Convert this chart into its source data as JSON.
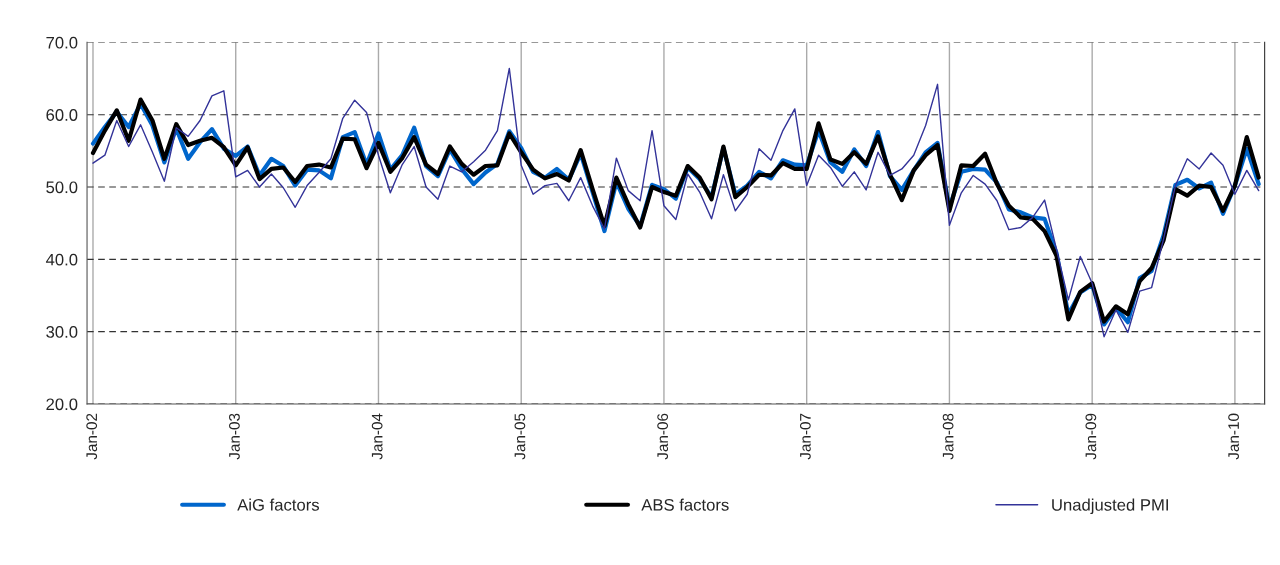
{
  "chart_data": {
    "type": "line",
    "categories": [
      "Jan-02",
      null,
      null,
      null,
      null,
      null,
      null,
      null,
      null,
      null,
      null,
      null,
      "Jan-03",
      null,
      null,
      null,
      null,
      null,
      null,
      null,
      null,
      null,
      null,
      null,
      "Jan-04",
      null,
      null,
      null,
      null,
      null,
      null,
      null,
      null,
      null,
      null,
      null,
      "Jan-05",
      null,
      null,
      null,
      null,
      null,
      null,
      null,
      null,
      null,
      null,
      null,
      "Jan-06",
      null,
      null,
      null,
      null,
      null,
      null,
      null,
      null,
      null,
      null,
      null,
      "Jan-07",
      null,
      null,
      null,
      null,
      null,
      null,
      null,
      null,
      null,
      null,
      null,
      "Jan-08",
      null,
      null,
      null,
      null,
      null,
      null,
      null,
      null,
      null,
      null,
      null,
      "Jan-09",
      null,
      null,
      null,
      null,
      null,
      null,
      null,
      null,
      null,
      null,
      null,
      "Jan-10",
      null,
      null
    ],
    "series": [
      {
        "name": "AiG factors",
        "color": "#0066cc",
        "values": [
          56.0,
          58.3,
          60.4,
          58.3,
          61.5,
          58.5,
          53.4,
          58.1,
          53.9,
          56.2,
          58.0,
          55.3,
          54.3,
          55.6,
          51.6,
          53.9,
          52.9,
          50.2,
          52.4,
          52.3,
          51.2,
          56.9,
          57.6,
          53.1,
          57.4,
          52.4,
          54.4,
          58.2,
          52.9,
          51.5,
          55.2,
          52.5,
          50.4,
          52.0,
          53.2,
          57.7,
          55.4,
          52.1,
          51.3,
          52.5,
          51.0,
          54.6,
          49.3,
          43.9,
          50.7,
          47.0,
          44.6,
          50.3,
          49.7,
          48.4,
          52.7,
          51.1,
          48.6,
          55.4,
          49.0,
          50.2,
          52.1,
          51.2,
          53.7,
          53.1,
          53.0,
          57.8,
          53.4,
          52.1,
          55.2,
          52.9,
          57.6,
          51.5,
          49.6,
          52.3,
          54.8,
          56.1,
          47.2,
          52.1,
          52.5,
          52.4,
          50.6,
          46.9,
          46.5,
          45.8,
          45.6,
          40.9,
          32.4,
          35.4,
          36.5,
          31.0,
          33.3,
          31.3,
          37.4,
          38.4,
          43.3,
          50.3,
          51.0,
          49.8,
          50.6,
          46.3,
          50.2,
          55.3,
          50.4
        ]
      },
      {
        "name": "ABS factors",
        "color": "#000000",
        "values": [
          54.7,
          57.8,
          60.6,
          56.4,
          62.1,
          59.2,
          53.9,
          58.7,
          55.8,
          56.4,
          56.8,
          55.5,
          53.0,
          55.5,
          51.1,
          52.5,
          52.7,
          50.7,
          52.9,
          53.1,
          52.7,
          56.7,
          56.6,
          52.6,
          56.1,
          52.1,
          54.0,
          56.9,
          53.1,
          51.8,
          55.6,
          53.2,
          51.7,
          52.9,
          53.0,
          57.4,
          54.8,
          52.4,
          51.2,
          51.8,
          50.9,
          55.1,
          49.7,
          44.6,
          51.3,
          47.6,
          44.4,
          50.0,
          49.3,
          48.8,
          52.9,
          51.3,
          48.3,
          55.6,
          48.6,
          50.0,
          51.7,
          51.6,
          53.3,
          52.5,
          52.5,
          58.8,
          53.8,
          53.2,
          54.8,
          53.2,
          57.0,
          51.7,
          48.2,
          52.3,
          54.4,
          55.8,
          46.7,
          53.0,
          52.9,
          54.6,
          50.4,
          47.4,
          45.8,
          45.6,
          43.9,
          40.5,
          31.7,
          35.5,
          36.7,
          31.4,
          33.5,
          32.4,
          37.0,
          38.8,
          42.6,
          49.7,
          48.8,
          50.2,
          50.0,
          46.7,
          50.2,
          56.9,
          51.3
        ]
      },
      {
        "name": "Unadjusted PMI",
        "color": "#333399",
        "values": [
          53.3,
          54.4,
          59.2,
          55.6,
          58.6,
          54.8,
          50.8,
          58.2,
          57.0,
          59.2,
          62.6,
          63.3,
          51.4,
          52.3,
          50.0,
          51.8,
          49.9,
          47.2,
          50.2,
          52.0,
          53.9,
          59.5,
          62.0,
          60.3,
          54.4,
          49.2,
          53.1,
          55.6,
          50.0,
          48.3,
          52.9,
          52.1,
          53.5,
          55.1,
          57.8,
          66.4,
          53.0,
          49.0,
          50.2,
          50.5,
          48.1,
          51.3,
          47.4,
          44.2,
          54.0,
          49.5,
          48.1,
          57.8,
          47.4,
          45.5,
          51.8,
          49.3,
          45.6,
          51.7,
          46.7,
          49.0,
          55.3,
          53.7,
          57.8,
          60.8,
          50.2,
          54.4,
          52.7,
          50.1,
          52.1,
          49.6,
          54.8,
          51.6,
          52.5,
          54.4,
          58.5,
          64.2,
          44.7,
          49.2,
          51.6,
          50.4,
          48.1,
          44.1,
          44.4,
          45.8,
          48.2,
          41.4,
          34.4,
          40.4,
          36.7,
          29.3,
          33.0,
          29.9,
          35.6,
          36.1,
          42.8,
          50.2,
          53.9,
          52.5,
          54.7,
          53.0,
          49.0,
          52.3,
          49.5
        ]
      }
    ],
    "ylim": [
      20,
      70
    ],
    "yticks": [
      {
        "value": 20,
        "label": "20.0"
      },
      {
        "value": 30,
        "label": "30.0"
      },
      {
        "value": 40,
        "label": "40.0"
      },
      {
        "value": 50,
        "label": "50.0"
      },
      {
        "value": 60,
        "label": "60.0"
      },
      {
        "value": 70,
        "label": "70.0"
      }
    ],
    "grid": true,
    "legend": "bottom",
    "marker": "none",
    "line_style": "solid"
  }
}
